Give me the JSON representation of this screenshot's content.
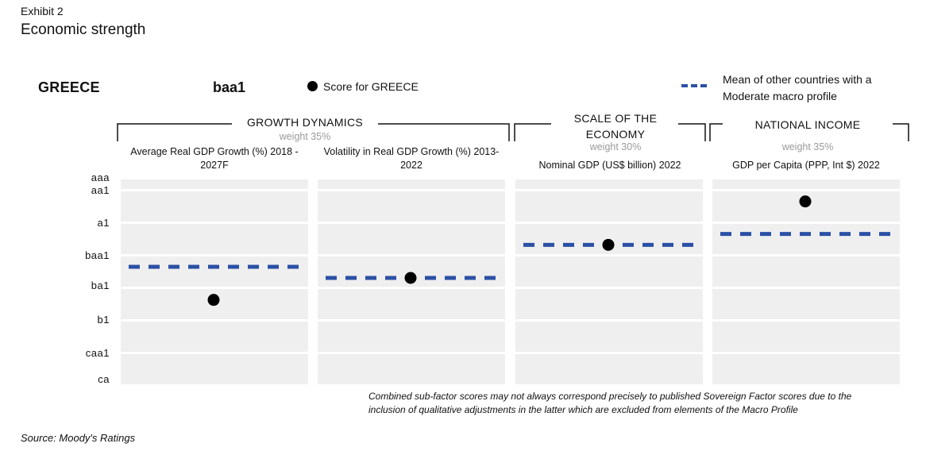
{
  "exhibit_label": "Exhibit 2",
  "title": "Economic strength",
  "country": "GREECE",
  "overall_score": "baa1",
  "legend": {
    "score_label": "Score for GREECE",
    "mean_label": "Mean of other countries with a Moderate macro profile"
  },
  "colors": {
    "dot": "#000000",
    "mean": "#2b50a6",
    "band": "#efefef"
  },
  "categories": [
    {
      "name": "GROWTH DYNAMICS",
      "weight": "weight 35%"
    },
    {
      "name": "SCALE OF THE ECONOMY",
      "weight": "weight 30%"
    },
    {
      "name": "NATIONAL INCOME",
      "weight": "weight 35%"
    }
  ],
  "chart_data": {
    "type": "scatter",
    "y_scale": [
      "aaa",
      "aa1",
      "a1",
      "baa1",
      "ba1",
      "b1",
      "caa1",
      "ca"
    ],
    "y_tick_labels": [
      "aaa",
      "aa1",
      "a1",
      "baa1",
      "ba1",
      "b1",
      "caa1",
      "ca"
    ],
    "y_direction": "aaa at top, ca at bottom",
    "series": [
      {
        "name": "Score for GREECE",
        "marker": "dot"
      },
      {
        "name": "Mean of other countries with a Moderate macro profile",
        "marker": "dashed-line"
      }
    ],
    "factors": [
      {
        "label": "Average Real GDP Growth (%) 2018 - 2027F",
        "score": "ba2",
        "mean": "baa2"
      },
      {
        "label": "Volatility in Real GDP Growth (%) 2013-2022",
        "score": "baa3",
        "mean": "baa3"
      },
      {
        "label": "Nominal GDP (US$ billion) 2022",
        "score": "a3",
        "mean": "a3"
      },
      {
        "label": "GDP per Capita (PPP, Int $) 2022",
        "score": "aa2",
        "mean": "a2"
      }
    ]
  },
  "note": "Combined sub-factor scores may not always correspond precisely to published Sovereign Factor scores due to the inclusion of qualitative adjustments in the latter which are excluded from elements of the Macro Profile",
  "source": "Source: Moody's Ratings"
}
